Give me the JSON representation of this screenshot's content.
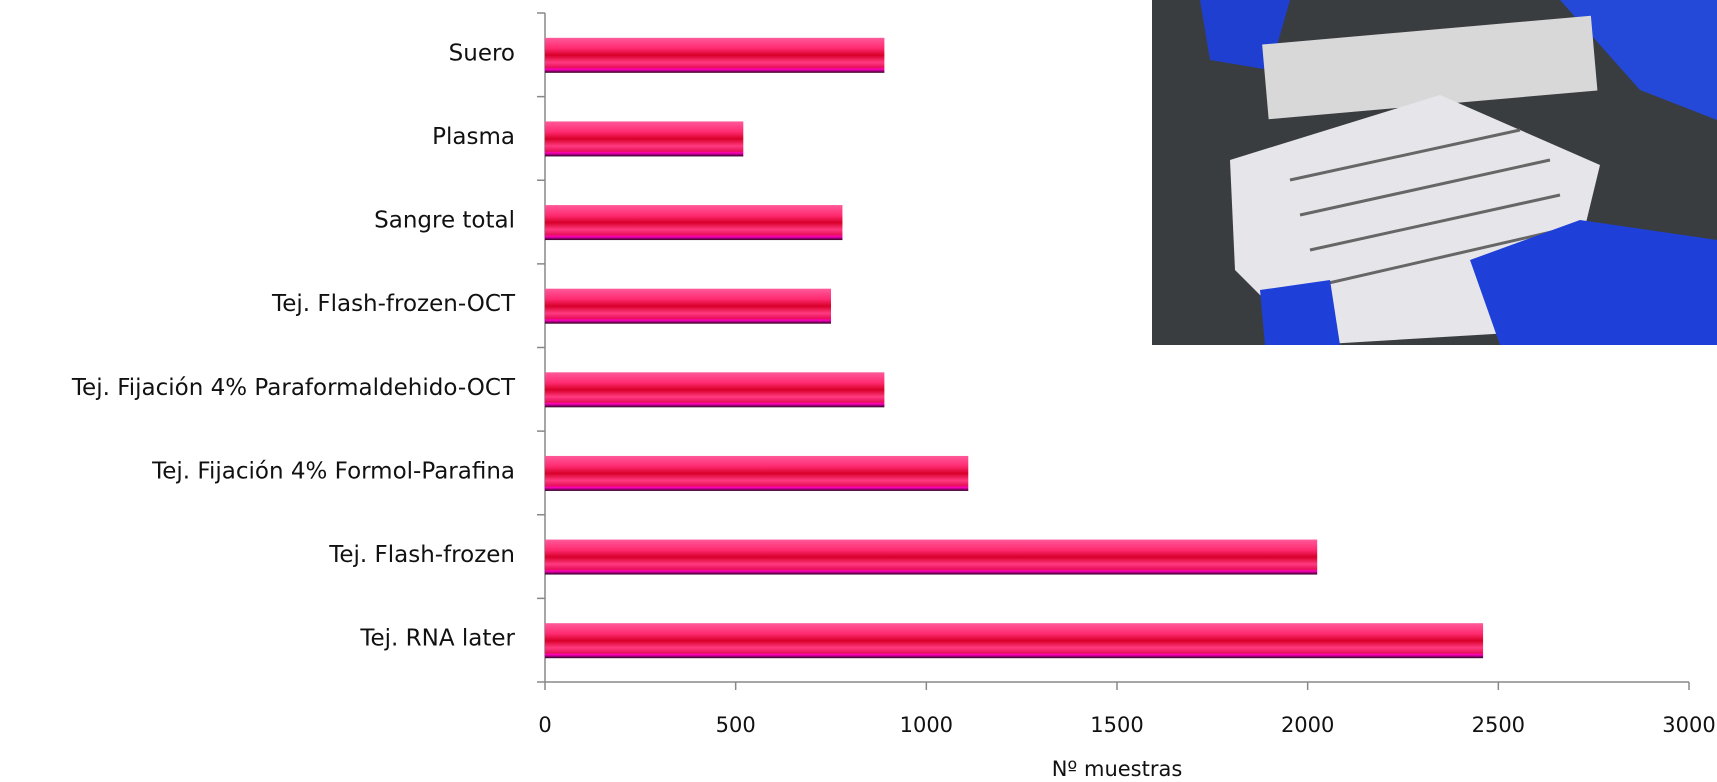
{
  "chart_data": {
    "type": "barh",
    "categories": [
      "Suero",
      "Plasma",
      "Sangre total",
      "Tej. Flash-frozen-OCT",
      "Tej. Fijación 4% Paraformaldehido-OCT",
      "Tej. Fijación 4% Formol-Parafina",
      "Tej. Flash-frozen",
      "Tej. RNA later"
    ],
    "values": [
      890,
      520,
      780,
      750,
      890,
      1110,
      2025,
      2460
    ],
    "xlabel": "Nº muestras",
    "xlim": [
      0,
      3000
    ],
    "xticks": [
      0,
      500,
      1000,
      1500,
      2000,
      2500,
      3000
    ],
    "color": "#e8105a"
  }
}
